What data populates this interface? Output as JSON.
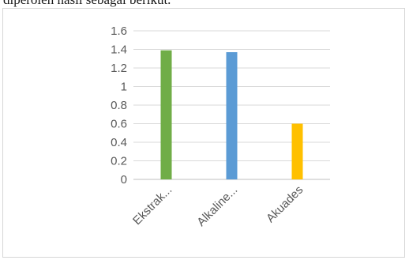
{
  "document": {
    "intro_text": "diperoleh hasil sebagai berikut."
  },
  "colors": {
    "grid": "#d9d9d9",
    "axis": "#bfbfbf",
    "text": "#595959"
  },
  "chart_data": {
    "type": "bar",
    "categories": [
      "Ekstrak...",
      "Alkaline...",
      "Akuades"
    ],
    "values": [
      1.39,
      1.37,
      0.6
    ],
    "bar_colors": [
      "#70ad47",
      "#5b9bd5",
      "#ffc000"
    ],
    "title": "",
    "xlabel": "",
    "ylabel": "",
    "ylim": [
      0,
      1.6
    ],
    "yticks": [
      0,
      0.2,
      0.4,
      0.6,
      0.8,
      1,
      1.2,
      1.4,
      1.6
    ],
    "ytick_labels": [
      "0",
      "0.2",
      "0.4",
      "0.6",
      "0.8",
      "1",
      "1.2",
      "1.4",
      "1.6"
    ],
    "grid": true,
    "legend": "none",
    "x_labels_rotation": "diagonal"
  }
}
